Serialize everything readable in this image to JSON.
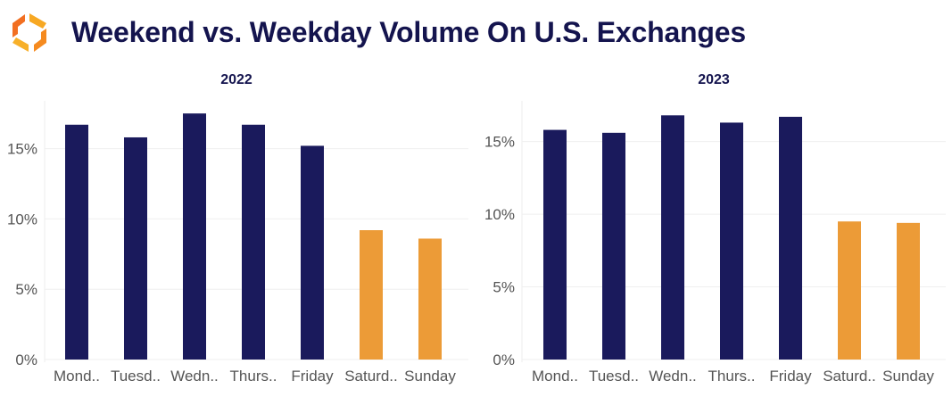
{
  "header": {
    "title": "Weekend vs. Weekday Volume On U.S. Exchanges",
    "logo_icon": "orange-hexagon-logo"
  },
  "colors": {
    "weekday": "#1a1a5c",
    "weekend": "#ec9b37",
    "title": "#14144e"
  },
  "chart_data": [
    {
      "type": "bar",
      "title": "2022",
      "categories": [
        "Mond..",
        "Tuesd..",
        "Wedn..",
        "Thurs..",
        "Friday",
        "Saturd..",
        "Sunday"
      ],
      "values": [
        16.7,
        15.8,
        17.5,
        16.7,
        15.2,
        9.2,
        8.6
      ],
      "bar_colors": [
        "#1a1a5c",
        "#1a1a5c",
        "#1a1a5c",
        "#1a1a5c",
        "#1a1a5c",
        "#ec9b37",
        "#ec9b37"
      ],
      "yticks": [
        "0%",
        "5%",
        "10%",
        "15%"
      ],
      "ytick_values": [
        0,
        5,
        10,
        15
      ],
      "ylim": [
        0,
        18.4
      ],
      "grid": true
    },
    {
      "type": "bar",
      "title": "2023",
      "categories": [
        "Mond..",
        "Tuesd..",
        "Wedn..",
        "Thurs..",
        "Friday",
        "Saturd..",
        "Sunday"
      ],
      "values": [
        15.8,
        15.6,
        16.8,
        16.3,
        16.7,
        9.5,
        9.4
      ],
      "bar_colors": [
        "#1a1a5c",
        "#1a1a5c",
        "#1a1a5c",
        "#1a1a5c",
        "#1a1a5c",
        "#ec9b37",
        "#ec9b37"
      ],
      "yticks": [
        "0%",
        "5%",
        "10%",
        "15%"
      ],
      "ytick_values": [
        0,
        5,
        10,
        15
      ],
      "ylim": [
        0,
        17.8
      ],
      "grid": true
    }
  ]
}
